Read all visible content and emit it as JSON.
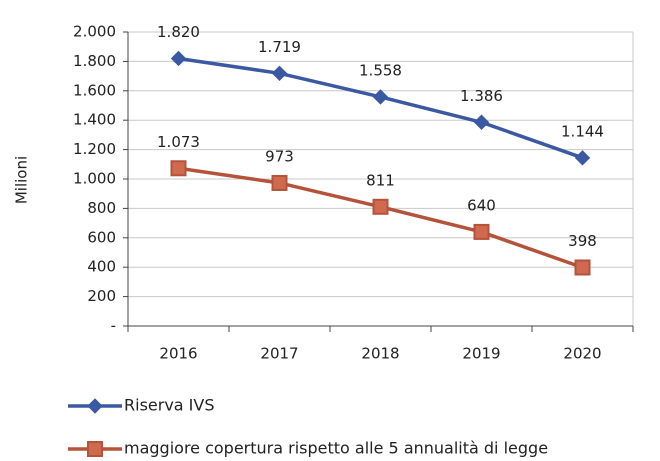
{
  "chart_data": {
    "type": "line",
    "y_label": "Milioni",
    "categories": [
      "2016",
      "2017",
      "2018",
      "2019",
      "2020"
    ],
    "series": [
      {
        "name": "Riserva IVS",
        "color": "#3b59a3",
        "marker": "diamond",
        "values": [
          1820,
          1719,
          1558,
          1386,
          1144
        ],
        "value_labels": [
          "1.820",
          "1.719",
          "1.558",
          "1.386",
          "1.144"
        ]
      },
      {
        "name": "maggiore copertura rispetto alle 5 annualità di legge",
        "color": "#b5533a",
        "marker": "square",
        "values": [
          1073,
          973,
          811,
          640,
          398
        ],
        "value_labels": [
          "1.073",
          "973",
          "811",
          "640",
          "398"
        ]
      }
    ],
    "ylim": [
      0,
      2000
    ],
    "yticks": [
      {
        "value": 0,
        "label": "-"
      },
      200,
      400,
      600,
      800,
      {
        "value": 1000,
        "label": "1.000"
      },
      {
        "value": 1200,
        "label": "1.200"
      },
      {
        "value": 1400,
        "label": "1.400"
      },
      {
        "value": 1600,
        "label": "1.600"
      },
      {
        "value": 1800,
        "label": "1.800"
      },
      {
        "value": 2000,
        "label": "2.000"
      }
    ],
    "grid": true,
    "legend": "bottom"
  }
}
